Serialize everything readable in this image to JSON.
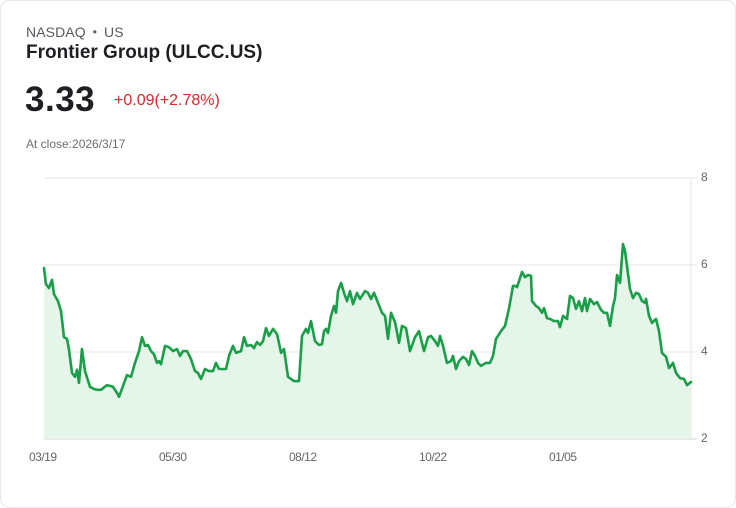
{
  "header": {
    "exchange": "NASDAQ",
    "separator": "•",
    "region": "US",
    "title": "Frontier Group (ULCC.US)",
    "price": "3.33",
    "change": "+0.09(+2.78%)",
    "close_label": "At close:2026/3/17"
  },
  "colors": {
    "line": "#1a9e48",
    "fill": "#e6f5ea",
    "change_negative_red": "#d9262c",
    "grid": "#e4e4e4"
  },
  "chart_data": {
    "type": "area",
    "title": "Frontier Group (ULCC.US)",
    "xlabel": "",
    "ylabel": "",
    "ylim": [
      2,
      8
    ],
    "yticks": [
      "8",
      "6",
      "4",
      "2"
    ],
    "xticks": [
      "03/19",
      "05/30",
      "08/12",
      "10/22",
      "01/05"
    ],
    "grid": true,
    "legend": false,
    "points": [
      [
        43,
        5.93
      ],
      [
        45,
        5.56
      ],
      [
        48,
        5.47
      ],
      [
        51,
        5.66
      ],
      [
        53,
        5.33
      ],
      [
        57,
        5.17
      ],
      [
        60,
        4.94
      ],
      [
        63,
        4.34
      ],
      [
        66,
        4.3
      ],
      [
        68,
        4.05
      ],
      [
        71,
        3.52
      ],
      [
        74,
        3.43
      ],
      [
        76,
        3.59
      ],
      [
        78,
        3.29
      ],
      [
        81,
        4.07
      ],
      [
        84,
        3.56
      ],
      [
        89,
        3.2
      ],
      [
        93,
        3.15
      ],
      [
        96,
        3.13
      ],
      [
        100,
        3.13
      ],
      [
        106,
        3.24
      ],
      [
        112,
        3.2
      ],
      [
        116,
        3.06
      ],
      [
        118,
        2.97
      ],
      [
        122,
        3.22
      ],
      [
        126,
        3.47
      ],
      [
        128,
        3.45
      ],
      [
        130,
        3.43
      ],
      [
        134,
        3.75
      ],
      [
        138,
        4.02
      ],
      [
        141,
        4.34
      ],
      [
        144,
        4.14
      ],
      [
        147,
        4.16
      ],
      [
        150,
        4.02
      ],
      [
        153,
        3.95
      ],
      [
        156,
        3.75
      ],
      [
        158,
        3.79
      ],
      [
        160,
        3.72
      ],
      [
        164,
        4.14
      ],
      [
        168,
        4.11
      ],
      [
        172,
        4.02
      ],
      [
        176,
        4.07
      ],
      [
        179,
        3.91
      ],
      [
        182,
        4.02
      ],
      [
        186,
        4.02
      ],
      [
        190,
        3.84
      ],
      [
        194,
        3.56
      ],
      [
        197,
        3.52
      ],
      [
        200,
        3.38
      ],
      [
        204,
        3.61
      ],
      [
        208,
        3.56
      ],
      [
        212,
        3.56
      ],
      [
        215,
        3.75
      ],
      [
        218,
        3.61
      ],
      [
        225,
        3.61
      ],
      [
        228,
        3.91
      ],
      [
        232,
        4.14
      ],
      [
        235,
        3.98
      ],
      [
        240,
        4.02
      ],
      [
        243,
        4.34
      ],
      [
        246,
        4.14
      ],
      [
        250,
        4.16
      ],
      [
        253,
        4.09
      ],
      [
        256,
        4.23
      ],
      [
        259,
        4.16
      ],
      [
        262,
        4.25
      ],
      [
        265,
        4.55
      ],
      [
        268,
        4.37
      ],
      [
        272,
        4.53
      ],
      [
        276,
        4.41
      ],
      [
        278,
        4.21
      ],
      [
        280,
        3.98
      ],
      [
        283,
        4.07
      ],
      [
        287,
        3.43
      ],
      [
        293,
        3.33
      ],
      [
        298,
        3.33
      ],
      [
        301,
        4.37
      ],
      [
        305,
        4.53
      ],
      [
        307,
        4.44
      ],
      [
        310,
        4.71
      ],
      [
        314,
        4.25
      ],
      [
        318,
        4.16
      ],
      [
        321,
        4.18
      ],
      [
        323,
        4.48
      ],
      [
        325,
        4.53
      ],
      [
        327,
        4.44
      ],
      [
        330,
        4.83
      ],
      [
        333,
        5.06
      ],
      [
        335,
        4.9
      ],
      [
        337,
        5.4
      ],
      [
        340,
        5.59
      ],
      [
        343,
        5.36
      ],
      [
        346,
        5.17
      ],
      [
        349,
        5.4
      ],
      [
        352,
        5.1
      ],
      [
        356,
        5.36
      ],
      [
        359,
        5.22
      ],
      [
        364,
        5.4
      ],
      [
        367,
        5.36
      ],
      [
        370,
        5.22
      ],
      [
        373,
        5.36
      ],
      [
        377,
        5.13
      ],
      [
        381,
        4.9
      ],
      [
        384,
        4.83
      ],
      [
        387,
        4.3
      ],
      [
        390,
        4.9
      ],
      [
        394,
        4.69
      ],
      [
        398,
        4.21
      ],
      [
        401,
        4.6
      ],
      [
        405,
        4.55
      ],
      [
        409,
        4.02
      ],
      [
        414,
        4.34
      ],
      [
        418,
        4.48
      ],
      [
        423,
        4.02
      ],
      [
        427,
        4.34
      ],
      [
        430,
        4.37
      ],
      [
        434,
        4.25
      ],
      [
        437,
        4.14
      ],
      [
        439,
        4.37
      ],
      [
        442,
        4.14
      ],
      [
        446,
        3.75
      ],
      [
        450,
        3.79
      ],
      [
        452,
        3.91
      ],
      [
        455,
        3.61
      ],
      [
        458,
        3.79
      ],
      [
        462,
        3.89
      ],
      [
        465,
        3.84
      ],
      [
        468,
        3.7
      ],
      [
        471,
        4.02
      ],
      [
        474,
        3.91
      ],
      [
        477,
        3.75
      ],
      [
        480,
        3.68
      ],
      [
        485,
        3.75
      ],
      [
        489,
        3.75
      ],
      [
        492,
        3.91
      ],
      [
        495,
        4.3
      ],
      [
        500,
        4.48
      ],
      [
        504,
        4.6
      ],
      [
        508,
        5.0
      ],
      [
        512,
        5.52
      ],
      [
        514,
        5.52
      ],
      [
        516,
        5.49
      ],
      [
        518,
        5.63
      ],
      [
        521,
        5.84
      ],
      [
        524,
        5.72
      ],
      [
        527,
        5.77
      ],
      [
        530,
        5.75
      ],
      [
        531,
        5.17
      ],
      [
        535,
        5.06
      ],
      [
        538,
        5.01
      ],
      [
        541,
        4.9
      ],
      [
        543,
        5.01
      ],
      [
        546,
        4.78
      ],
      [
        549,
        4.76
      ],
      [
        553,
        4.71
      ],
      [
        557,
        4.71
      ],
      [
        559,
        4.57
      ],
      [
        562,
        4.83
      ],
      [
        566,
        4.76
      ],
      [
        569,
        5.29
      ],
      [
        572,
        5.24
      ],
      [
        575,
        4.99
      ],
      [
        578,
        5.17
      ],
      [
        581,
        4.94
      ],
      [
        584,
        5.24
      ],
      [
        586,
        4.94
      ],
      [
        589,
        5.22
      ],
      [
        593,
        5.1
      ],
      [
        596,
        5.15
      ],
      [
        600,
        4.97
      ],
      [
        603,
        4.9
      ],
      [
        606,
        4.9
      ],
      [
        609,
        4.6
      ],
      [
        612,
        5.06
      ],
      [
        614,
        5.24
      ],
      [
        616,
        5.77
      ],
      [
        619,
        5.59
      ],
      [
        622,
        6.48
      ],
      [
        624,
        6.32
      ],
      [
        626,
        5.98
      ],
      [
        629,
        5.45
      ],
      [
        632,
        5.24
      ],
      [
        635,
        5.36
      ],
      [
        638,
        5.33
      ],
      [
        641,
        5.17
      ],
      [
        644,
        5.13
      ],
      [
        645,
        5.22
      ],
      [
        648,
        4.83
      ],
      [
        651,
        4.67
      ],
      [
        655,
        4.76
      ],
      [
        658,
        4.48
      ],
      [
        661,
        3.98
      ],
      [
        665,
        3.89
      ],
      [
        668,
        3.63
      ],
      [
        672,
        3.75
      ],
      [
        675,
        3.52
      ],
      [
        679,
        3.4
      ],
      [
        683,
        3.38
      ],
      [
        686,
        3.24
      ],
      [
        690,
        3.31
      ]
    ]
  }
}
